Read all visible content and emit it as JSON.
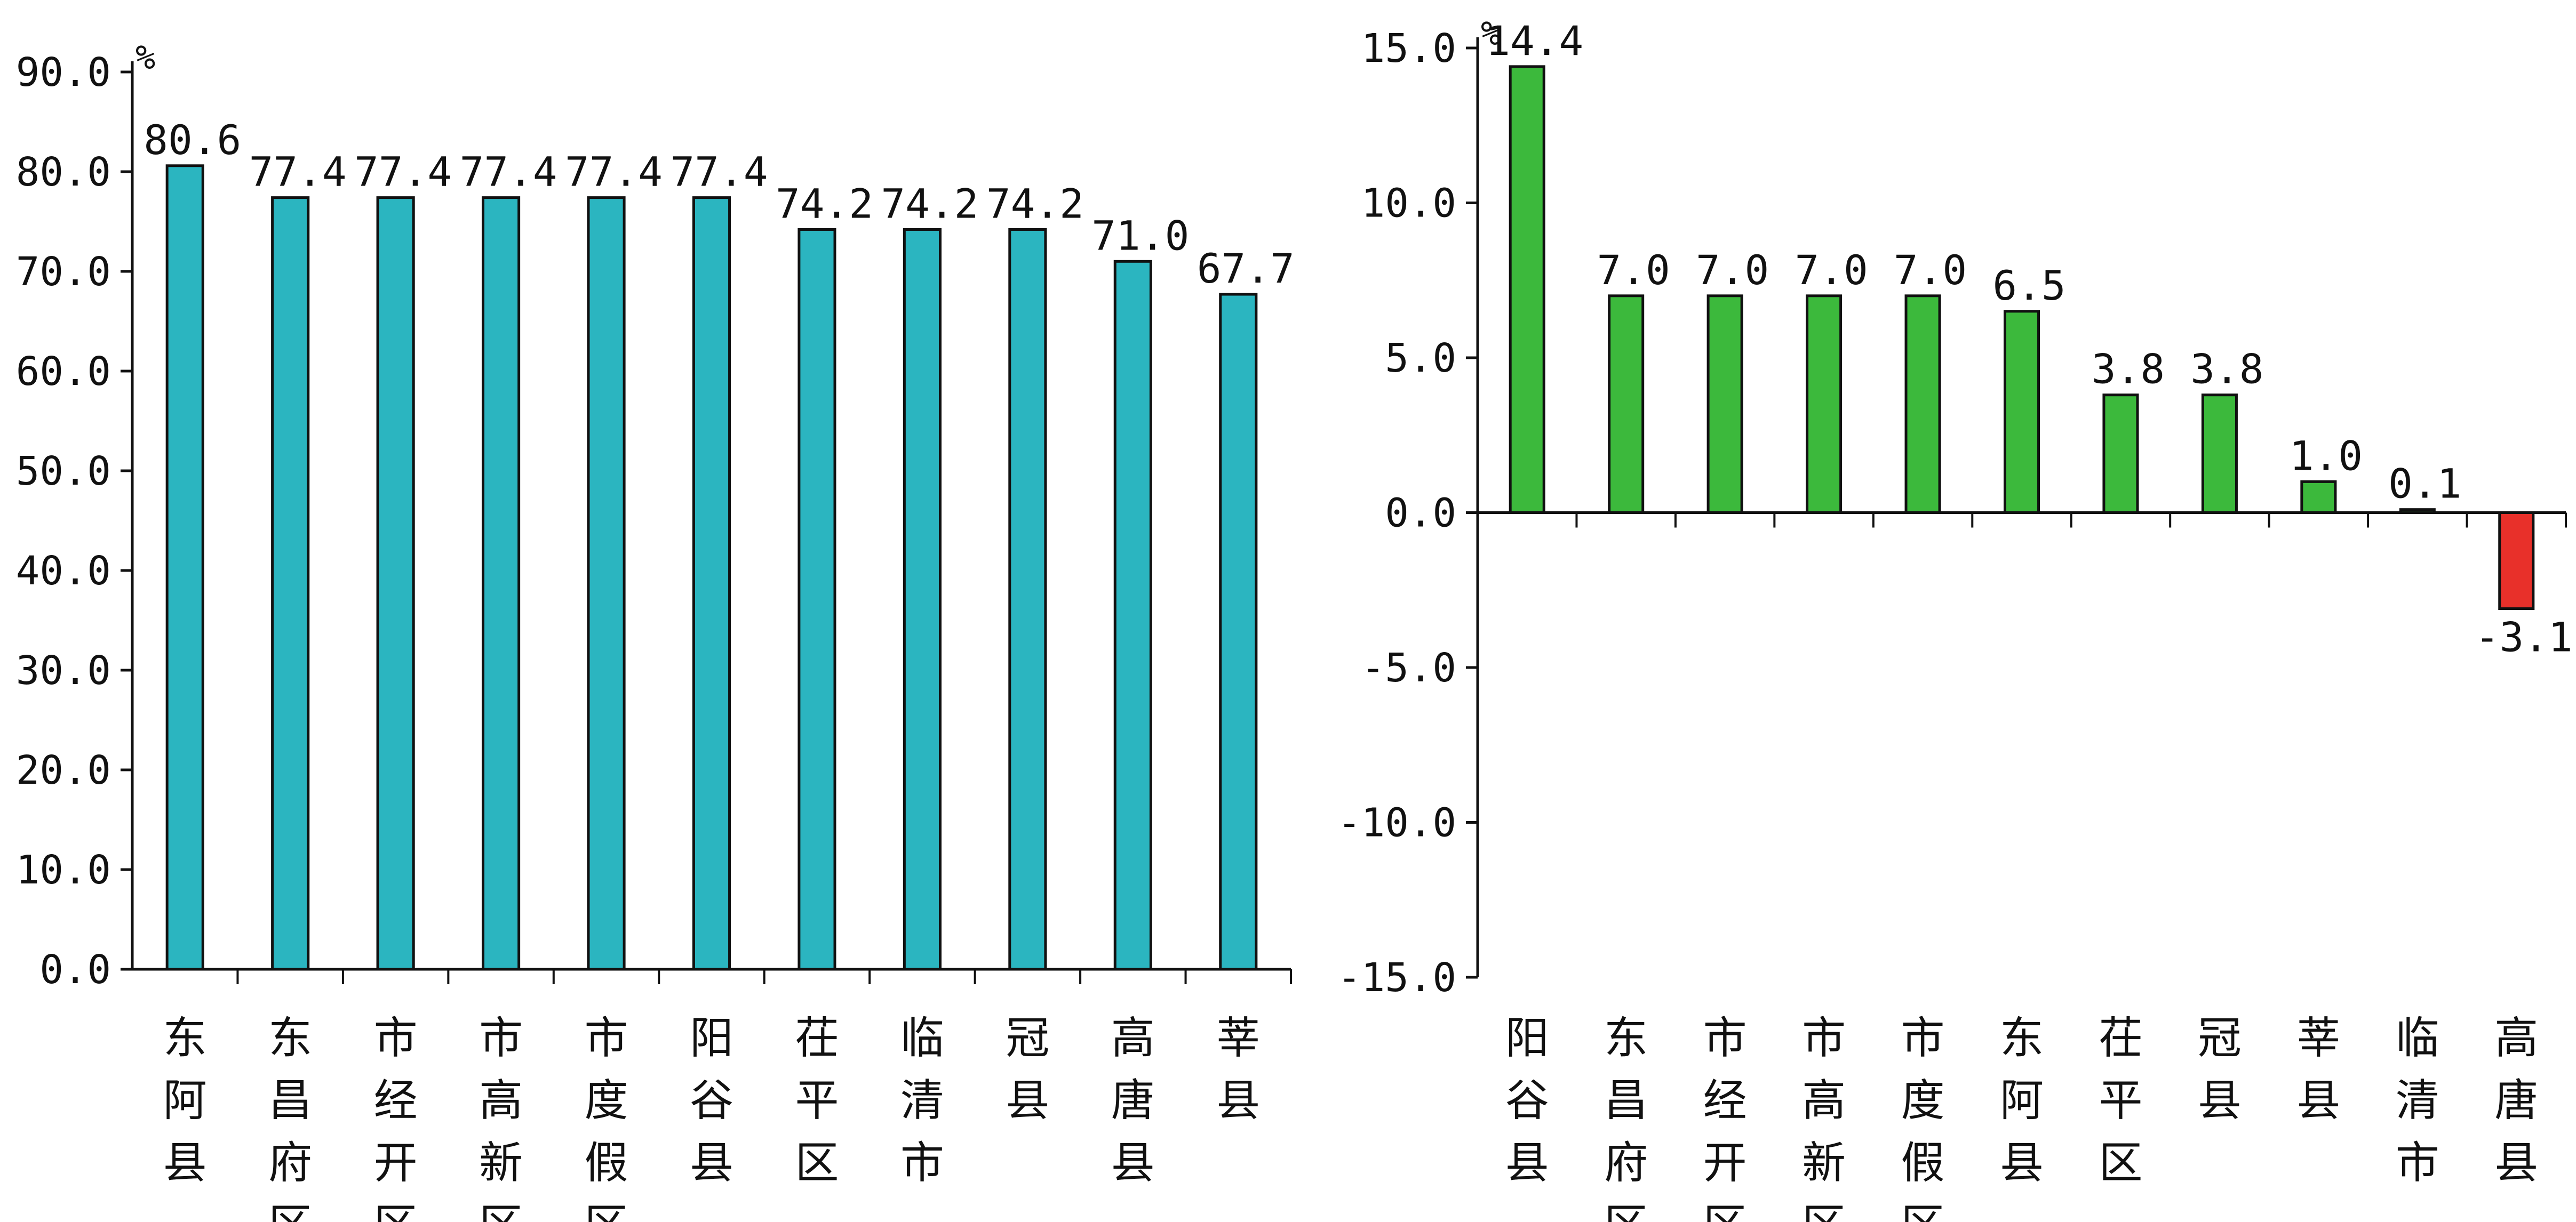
{
  "chart_data": [
    {
      "type": "bar",
      "unit_label": "%",
      "categories": [
        [
          "东",
          "阿",
          "县"
        ],
        [
          "东",
          "昌",
          "府",
          "区"
        ],
        [
          "市",
          "经",
          "开",
          "区"
        ],
        [
          "市",
          "高",
          "新",
          "区"
        ],
        [
          "市",
          "度",
          "假",
          "区"
        ],
        [
          "阳",
          "谷",
          "县"
        ],
        [
          "茌",
          "平",
          "区"
        ],
        [
          "临",
          "清",
          "市"
        ],
        [
          "冠",
          "县"
        ],
        [
          "高",
          "唐",
          "县"
        ],
        [
          "莘",
          "县"
        ]
      ],
      "values": [
        80.6,
        77.4,
        77.4,
        77.4,
        77.4,
        77.4,
        74.2,
        74.2,
        74.2,
        71.0,
        67.7
      ],
      "data_labels": [
        "80.6",
        "77.4",
        "77.4",
        "77.4",
        "77.4",
        "77.4",
        "74.2",
        "74.2",
        "74.2",
        "71.0",
        "67.7"
      ],
      "y_ticks": [
        "0.0",
        "10.0",
        "20.0",
        "30.0",
        "40.0",
        "50.0",
        "60.0",
        "70.0",
        "80.0",
        "90.0"
      ],
      "ylim": [
        0,
        90
      ],
      "bar_color": "#2bb5c0"
    },
    {
      "type": "bar",
      "unit_label": "%",
      "categories": [
        [
          "阳",
          "谷",
          "县"
        ],
        [
          "东",
          "昌",
          "府",
          "区"
        ],
        [
          "市",
          "经",
          "开",
          "区"
        ],
        [
          "市",
          "高",
          "新",
          "区"
        ],
        [
          "市",
          "度",
          "假",
          "区"
        ],
        [
          "东",
          "阿",
          "县"
        ],
        [
          "茌",
          "平",
          "区"
        ],
        [
          "冠",
          "县"
        ],
        [
          "莘",
          "县"
        ],
        [
          "临",
          "清",
          "市"
        ],
        [
          "高",
          "唐",
          "县"
        ]
      ],
      "values": [
        14.4,
        7.0,
        7.0,
        7.0,
        7.0,
        6.5,
        3.8,
        3.8,
        1.0,
        0.1,
        -3.1
      ],
      "data_labels": [
        "14.4",
        "7.0",
        "7.0",
        "7.0",
        "7.0",
        "6.5",
        "3.8",
        "3.8",
        "1.0",
        "0.1",
        "-3.1"
      ],
      "y_ticks": [
        "-15.0",
        "-10.0",
        "-5.0",
        "0.0",
        "5.0",
        "10.0",
        "15.0"
      ],
      "ylim": [
        -15,
        15
      ],
      "positive_color": "#3cb93c",
      "negative_color": "#e8302a"
    }
  ]
}
